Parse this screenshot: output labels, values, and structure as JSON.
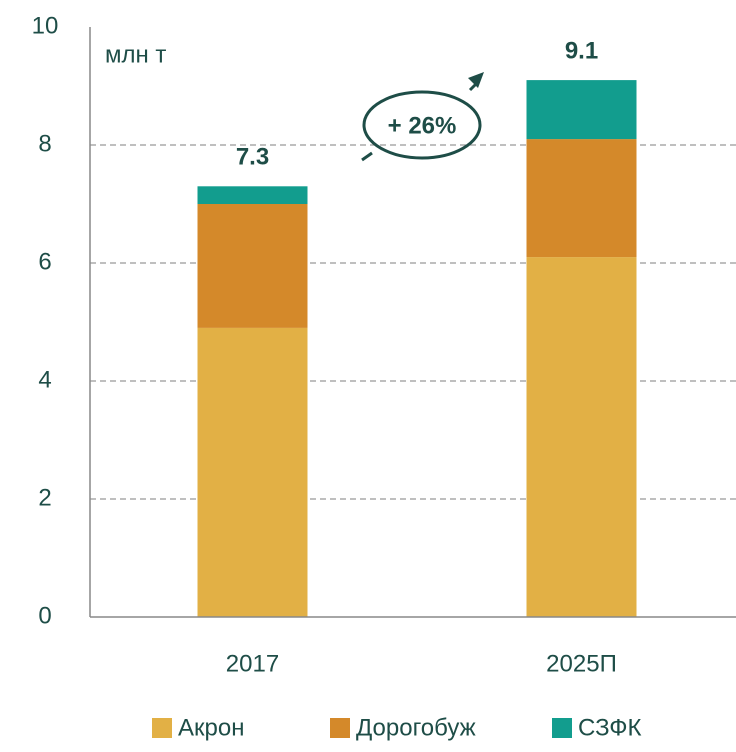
{
  "chart_data": {
    "type": "stacked_bar",
    "unit_label": "млн т",
    "categories": [
      "2017",
      "2025П"
    ],
    "series": [
      {
        "name": "Акрон",
        "color": "#e2b045",
        "values": [
          4.9,
          6.1
        ]
      },
      {
        "name": "Дорогобуж",
        "color": "#d4892a",
        "values": [
          2.1,
          2.0
        ]
      },
      {
        "name": "СЗФК",
        "color": "#129d8e",
        "values": [
          0.3,
          1.0
        ]
      }
    ],
    "totals": [
      7.3,
      9.1
    ],
    "annotation": "+ 26%",
    "ylim": [
      0,
      10
    ],
    "yticks": [
      0,
      2,
      4,
      6,
      8,
      10
    ],
    "grid": true,
    "legend": "bottom"
  }
}
